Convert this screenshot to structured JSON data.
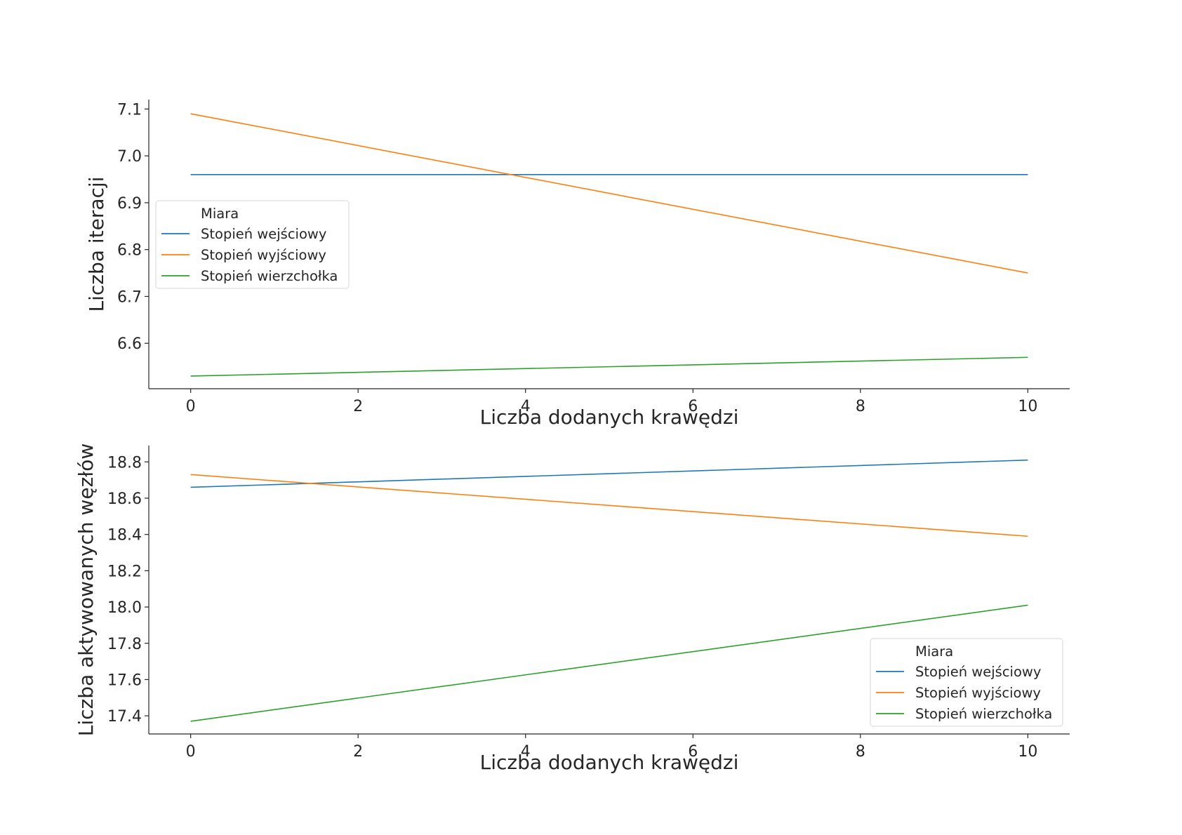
{
  "chart_data": [
    {
      "type": "line",
      "xlabel": "Liczba dodanych krawędzi",
      "ylabel": "Liczba iteracji",
      "xlim": [
        -0.5,
        10.5
      ],
      "ylim": [
        6.503,
        7.12
      ],
      "xticks": [
        0,
        2,
        4,
        6,
        8,
        10
      ],
      "yticks": [
        6.6,
        6.7,
        6.8,
        6.9,
        7.0,
        7.1
      ],
      "ytick_labels": [
        "6.6",
        "6.7",
        "6.8",
        "6.9",
        "7.0",
        "7.1"
      ],
      "x": [
        0,
        10
      ],
      "legend": {
        "title": "Miara",
        "placement": "center-left"
      },
      "series": [
        {
          "name": "Stopień wejściowy",
          "color": "#1f77b4",
          "values": [
            6.96,
            6.96
          ]
        },
        {
          "name": "Stopień wyjściowy",
          "color": "#ff7f0e",
          "values": [
            7.09,
            6.75
          ]
        },
        {
          "name": "Stopień wierzchołka",
          "color": "#2ca02c",
          "values": [
            6.53,
            6.57
          ]
        }
      ]
    },
    {
      "type": "line",
      "xlabel": "Liczba dodanych krawędzi",
      "ylabel": "Liczba aktywowanych węzłów",
      "xlim": [
        -0.5,
        10.5
      ],
      "ylim": [
        17.3,
        18.89
      ],
      "xticks": [
        0,
        2,
        4,
        6,
        8,
        10
      ],
      "yticks": [
        17.4,
        17.6,
        17.8,
        18.0,
        18.2,
        18.4,
        18.6,
        18.8
      ],
      "ytick_labels": [
        "17.4",
        "17.6",
        "17.8",
        "18.0",
        "18.2",
        "18.4",
        "18.6",
        "18.8"
      ],
      "x": [
        0,
        10
      ],
      "legend": {
        "title": "Miara",
        "placement": "lower-right"
      },
      "series": [
        {
          "name": "Stopień wejściowy",
          "color": "#1f77b4",
          "values": [
            18.66,
            18.81
          ]
        },
        {
          "name": "Stopień wyjściowy",
          "color": "#ff7f0e",
          "values": [
            18.73,
            18.39
          ]
        },
        {
          "name": "Stopień wierzchołka",
          "color": "#2ca02c",
          "values": [
            17.37,
            18.01
          ]
        }
      ]
    }
  ]
}
